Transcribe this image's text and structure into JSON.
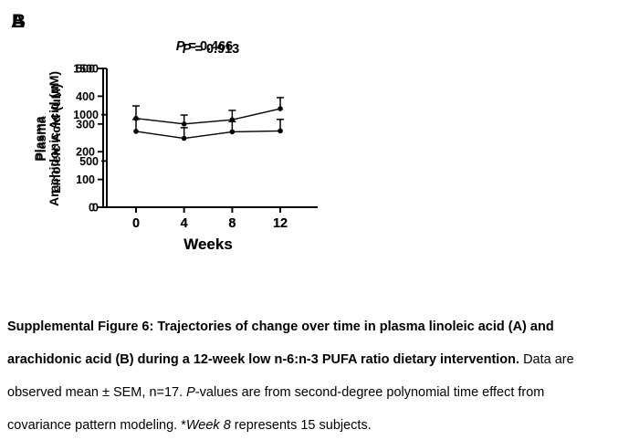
{
  "panels": [
    {
      "label": "A",
      "p_prefix": "P",
      "p_value": " = 0.913",
      "ylabel_line1": "Plasma",
      "ylabel_line2": "Linoleic Acid (uM)",
      "xlabel": "Weeks"
    },
    {
      "label": "B",
      "p_prefix": "P",
      "p_value": " = 0.466",
      "ylabel_line1": "Plasma",
      "ylabel_line2": "Arachidonic Acid (uM)",
      "xlabel": "Weeks"
    }
  ],
  "chart_data": [
    {
      "type": "line",
      "panel": "A",
      "title": "P = 0.913",
      "xlabel": "Weeks",
      "ylabel": "Plasma Linoleic Acid (uM)",
      "x": [
        0,
        4,
        8,
        12
      ],
      "series": [
        {
          "name": "Plasma linoleic acid mean",
          "values": [
            820,
            745,
            815,
            825
          ]
        }
      ],
      "sem_upper": [
        130,
        115,
        110,
        125
      ],
      "xticks": [
        0,
        4,
        8,
        12
      ],
      "yticks": [
        0,
        500,
        1000,
        1500
      ],
      "ylim": [
        0,
        1500
      ],
      "error_bars": "mean + SEM (upper only)",
      "marker": "filled-circle",
      "line_color": "#000000",
      "grid": "off",
      "legend": "none"
    },
    {
      "type": "line",
      "panel": "B",
      "title": "P = 0.466",
      "xlabel": "Weeks",
      "ylabel": "Plasma Arachidonic Acid (uM)",
      "x": [
        0,
        4,
        8,
        12
      ],
      "series": [
        {
          "name": "Plasma arachidonic acid mean",
          "values": [
            320,
            300,
            315,
            355
          ]
        }
      ],
      "sem_upper": [
        45,
        32,
        34,
        40
      ],
      "xticks": [
        0,
        4,
        8,
        12
      ],
      "yticks": [
        0,
        100,
        200,
        300,
        400,
        500
      ],
      "ylim": [
        0,
        500
      ],
      "error_bars": "mean + SEM (upper only)",
      "marker": "filled-circle",
      "line_color": "#000000",
      "grid": "off",
      "legend": "none"
    }
  ],
  "caption": {
    "lines": [
      [
        {
          "style": "bold",
          "text": "Supplemental Figure 6: Trajectories of change over time in plasma linoleic acid (A) and"
        }
      ],
      [
        {
          "style": "bold",
          "text": "arachidonic acid (B) during a 12-week low n-6:n-3 PUFA ratio dietary intervention."
        },
        {
          "style": "regular",
          "text": " Data are"
        }
      ],
      [
        {
          "style": "regular",
          "text": "observed mean ± SEM, n=17. "
        },
        {
          "style": "italic",
          "text": "P"
        },
        {
          "style": "regular",
          "text": "-values are from second-degree polynomial time effect from"
        }
      ],
      [
        {
          "style": "regular",
          "text": "covariance pattern modeling. *"
        },
        {
          "style": "italic",
          "text": "Week 8"
        },
        {
          "style": "regular",
          "text": " represents 15 subjects."
        }
      ]
    ]
  },
  "colors": {
    "ink": "#000000",
    "background": "#ffffff"
  }
}
